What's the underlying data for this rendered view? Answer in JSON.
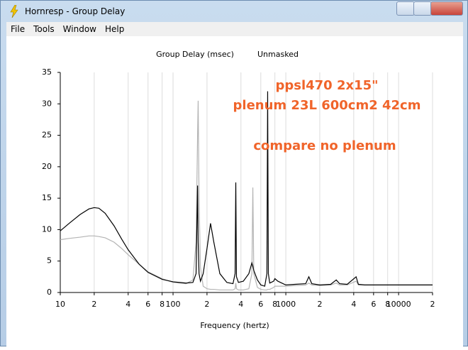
{
  "window": {
    "title": "Hornresp - Group Delay",
    "menu": [
      "File",
      "Tools",
      "Window",
      "Help"
    ]
  },
  "chart_data": {
    "type": "line",
    "title": "Group Delay (msec)",
    "subtitle": "Unmasked",
    "xlabel": "Frequency (hertz)",
    "annotations": [
      "ppsl470 2x15\"",
      "plenum 23L 600cm2 42cm",
      "compare no plenum"
    ],
    "annotation_color": "#f0642a",
    "xscale": "log",
    "grid": true,
    "xlim": [
      10,
      20000
    ],
    "ylim": [
      0,
      35
    ],
    "xticks": [
      {
        "value": 10,
        "label": "10"
      },
      {
        "value": 20,
        "label": "2"
      },
      {
        "value": 40,
        "label": "4"
      },
      {
        "value": 60,
        "label": "6"
      },
      {
        "value": 80,
        "label": "8"
      },
      {
        "value": 100,
        "label": "100"
      },
      {
        "value": 200,
        "label": "2"
      },
      {
        "value": 400,
        "label": "4"
      },
      {
        "value": 600,
        "label": "6"
      },
      {
        "value": 800,
        "label": "8"
      },
      {
        "value": 1000,
        "label": "1000"
      },
      {
        "value": 2000,
        "label": "2"
      },
      {
        "value": 4000,
        "label": "4"
      },
      {
        "value": 6000,
        "label": "6"
      },
      {
        "value": 8000,
        "label": "8"
      },
      {
        "value": 10000,
        "label": "10000"
      },
      {
        "value": 20000,
        "label": "2"
      }
    ],
    "yticks": [
      0,
      5,
      10,
      15,
      20,
      25,
      30,
      35
    ],
    "x": [
      10,
      12,
      15,
      18,
      20,
      22,
      25,
      30,
      35,
      40,
      50,
      60,
      80,
      100,
      130,
      150,
      160,
      165,
      167,
      170,
      175,
      185,
      200,
      215,
      230,
      260,
      300,
      340,
      355,
      360,
      365,
      380,
      420,
      470,
      500,
      510,
      520,
      560,
      600,
      650,
      680,
      690,
      695,
      700,
      720,
      780,
      800,
      850,
      1000,
      1200,
      1500,
      1600,
      1700,
      2000,
      2500,
      2800,
      3000,
      3500,
      4200,
      4400,
      5000,
      7000,
      10000,
      20000
    ],
    "series": [
      {
        "color": "#b4b4b4",
        "values": [
          8.4,
          8.6,
          8.8,
          9,
          9,
          8.9,
          8.7,
          8,
          7,
          6,
          4.5,
          3.3,
          2.2,
          1.6,
          1.4,
          2,
          8,
          25,
          30.5,
          15,
          4,
          1,
          0.6,
          0.5,
          0.5,
          0.4,
          0.4,
          0.4,
          0.6,
          1.5,
          0.6,
          0.4,
          0.4,
          0.6,
          3,
          16.7,
          3,
          0.8,
          0.5,
          0.4,
          0.4,
          0.5,
          0.5,
          0.5,
          0.5,
          0.8,
          1,
          1,
          1,
          1.1,
          1.2,
          1.5,
          1.2,
          1.1,
          1.2,
          1.5,
          1.2,
          1.2,
          1.8,
          1.2,
          1.2,
          1.2,
          1.2,
          1.2
        ]
      },
      {
        "color": "#000000",
        "values": [
          9.8,
          11,
          12.4,
          13.3,
          13.5,
          13.4,
          12.6,
          10.6,
          8.5,
          6.8,
          4.5,
          3.2,
          2.1,
          1.7,
          1.5,
          1.6,
          3,
          17,
          8,
          3,
          1.8,
          3,
          7,
          11,
          8,
          3,
          1.6,
          1.4,
          3,
          17.5,
          2.5,
          1.6,
          1.8,
          3,
          4.7,
          4.2,
          3.5,
          2,
          1.2,
          1,
          3,
          32,
          16.5,
          3,
          1.5,
          1.8,
          2.2,
          1.8,
          1.2,
          1.3,
          1.4,
          2.5,
          1.4,
          1.2,
          1.3,
          2,
          1.4,
          1.3,
          2.5,
          1.3,
          1.2,
          1.2,
          1.2,
          1.2
        ]
      }
    ]
  }
}
